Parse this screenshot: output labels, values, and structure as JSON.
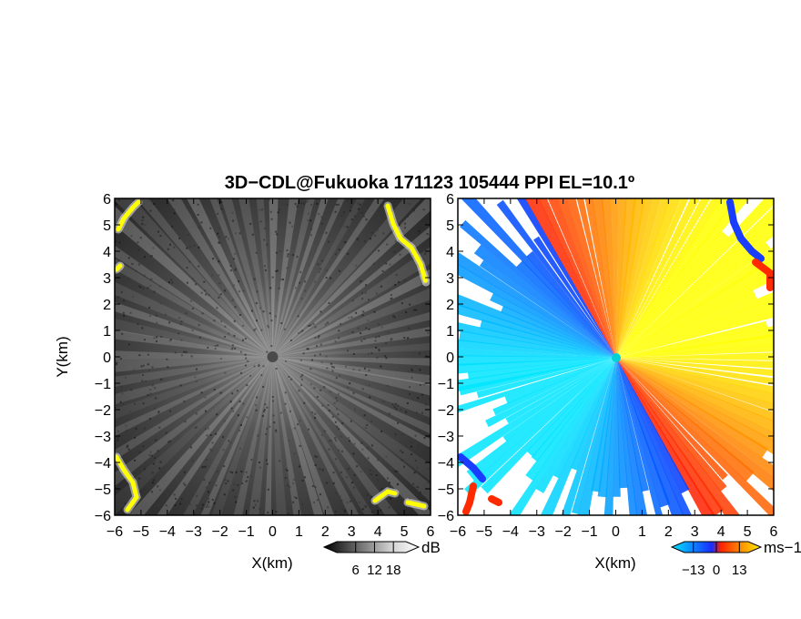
{
  "chart_data": {
    "title": "3D−CDL@Fukuoka 171123 105444 PPI EL=10.1º",
    "panels": [
      {
        "type": "heatmap",
        "name": "reflectivity",
        "xlabel": "X(km)",
        "ylabel": "Y(km)",
        "xlim": [
          -6,
          6
        ],
        "ylim": [
          -6,
          6
        ],
        "x_ticks": [
          "−6",
          "−5",
          "−4",
          "−3",
          "−2",
          "−1",
          "0",
          "1",
          "2",
          "3",
          "4",
          "5",
          "6"
        ],
        "y_ticks": [
          "−6",
          "−5",
          "−4",
          "−3",
          "−2",
          "−1",
          "0",
          "1",
          "2",
          "3",
          "4",
          "5",
          "6"
        ],
        "colorbar": {
          "unit": "dB",
          "ticks": [
            "6",
            "12",
            "18"
          ],
          "tick_values": [
            6,
            12,
            18
          ],
          "range": [
            0,
            22
          ],
          "colors": [
            "#0a0a0a",
            "#ffffff",
            "#ffff00"
          ]
        },
        "highlight_color": "#ffff00"
      },
      {
        "type": "heatmap",
        "name": "doppler-velocity",
        "xlabel": "X(km)",
        "ylabel": "",
        "xlim": [
          -6,
          6
        ],
        "ylim": [
          -6,
          6
        ],
        "x_ticks": [
          "−6",
          "−5",
          "−4",
          "−3",
          "−2",
          "−1",
          "0",
          "1",
          "2",
          "3",
          "4",
          "5",
          "6"
        ],
        "y_ticks": [
          "−6",
          "−5",
          "−4",
          "−3",
          "−2",
          "−1",
          "0",
          "1",
          "2",
          "3",
          "4",
          "5",
          "6"
        ],
        "colorbar": {
          "unit": "ms−1",
          "ticks": [
            "−13",
            "0",
            "13"
          ],
          "tick_values": [
            -13,
            0,
            13
          ],
          "range": [
            -18,
            18
          ],
          "colors": [
            "#00e5ff",
            "#0033ff",
            "#ff2000",
            "#ffff00"
          ]
        }
      }
    ]
  }
}
